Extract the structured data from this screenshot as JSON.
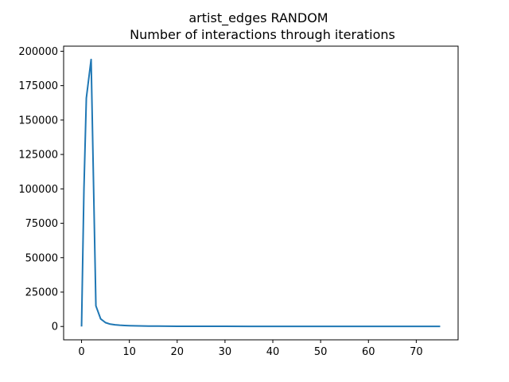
{
  "chart_data": {
    "type": "line",
    "title": "artist_edges RANDOM",
    "subtitle": "Number of interactions through iterations",
    "xlabel": "",
    "ylabel": "",
    "xlim": [
      -3.75,
      78.75
    ],
    "ylim": [
      -9700,
      203700
    ],
    "xticks": [
      0,
      10,
      20,
      30,
      40,
      50,
      60,
      70
    ],
    "yticks": [
      0,
      25000,
      50000,
      75000,
      100000,
      125000,
      150000,
      175000,
      200000
    ],
    "grid": false,
    "line_color": "#1f77b4",
    "series": [
      {
        "x": [
          0,
          0.5,
          1,
          2,
          3,
          4,
          5,
          6,
          7,
          8,
          9,
          10,
          12,
          14,
          16,
          18,
          20,
          25,
          30,
          35,
          40,
          45,
          50,
          55,
          60,
          65,
          70,
          75
        ],
        "values": [
          0,
          100000,
          166000,
          194000,
          15000,
          5500,
          2800,
          1700,
          1200,
          900,
          700,
          550,
          400,
          300,
          250,
          200,
          150,
          120,
          100,
          80,
          70,
          60,
          55,
          50,
          45,
          40,
          35,
          30
        ]
      }
    ]
  }
}
